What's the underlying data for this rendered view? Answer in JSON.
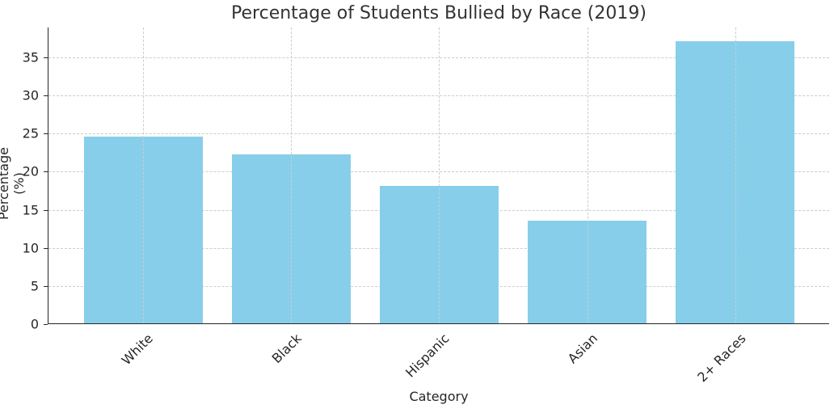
{
  "chart_data": {
    "type": "bar",
    "title": "Percentage of Students Bullied by Race (2019)",
    "xlabel": "Category",
    "ylabel": "Percentage (%)",
    "categories": [
      "White",
      "Black",
      "Hispanic",
      "Asian",
      "2+ Races"
    ],
    "values": [
      24.5,
      22.2,
      18.0,
      13.5,
      37.0
    ],
    "ylim": [
      0,
      38.9
    ],
    "yticks": [
      0,
      5,
      10,
      15,
      20,
      25,
      30,
      35
    ],
    "grid": true,
    "bar_color": "#87ceeb",
    "legend": null
  }
}
